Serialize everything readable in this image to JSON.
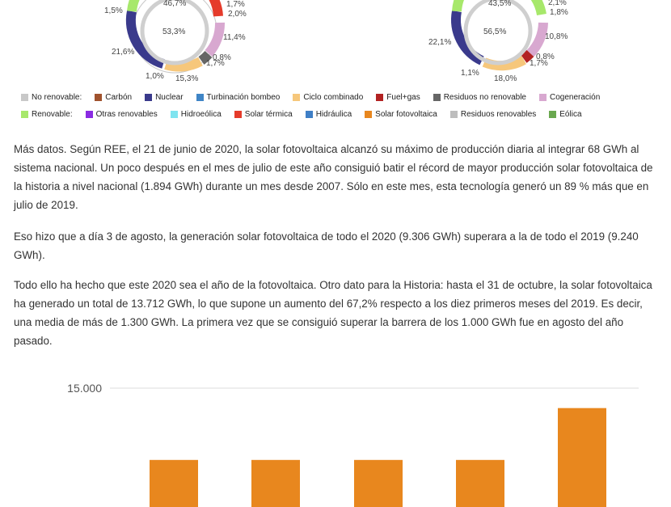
{
  "donut_left": {
    "inner_top": "46,7%",
    "inner_bottom": "53,3%",
    "labels": [
      "1,5%",
      "1,7%",
      "2,0%",
      "11,4%",
      "0,8%",
      "1,7%",
      "15,3%",
      "1,0%",
      "21,6%"
    ]
  },
  "donut_right": {
    "inner_top": "43,5%",
    "inner_bottom": "56,5%",
    "labels": [
      "2,1%",
      "1,8%",
      "10,8%",
      "0,8%",
      "1,7%",
      "18,0%",
      "1,1%",
      "22,1%"
    ]
  },
  "legend": {
    "row1": [
      {
        "label": "No renovable:",
        "color": "#c8c8c8"
      },
      {
        "label": "Carbón",
        "color": "#a0522d"
      },
      {
        "label": "Nuclear",
        "color": "#3a3a8c"
      },
      {
        "label": "Turbinación bombeo",
        "color": "#3f85c6"
      },
      {
        "label": "Ciclo combinado",
        "color": "#f6c77b"
      },
      {
        "label": "Fuel+gas",
        "color": "#b22222"
      },
      {
        "label": "Residuos no renovable",
        "color": "#666666"
      },
      {
        "label": "Cogeneración",
        "color": "#d8a8d0"
      }
    ],
    "row2": [
      {
        "label": "Renovable:",
        "color": "#a7e86b"
      },
      {
        "label": "Otras renovables",
        "color": "#8a2be2"
      },
      {
        "label": "Hidroeólica",
        "color": "#7fe4f0"
      },
      {
        "label": "Solar térmica",
        "color": "#e53b2b"
      },
      {
        "label": "Hidráulica",
        "color": "#3f7fc6"
      },
      {
        "label": "Solar fotovoltaica",
        "color": "#e8871e"
      },
      {
        "label": "Residuos renovables",
        "color": "#bdbdbd"
      },
      {
        "label": "Eólica",
        "color": "#6aa84f"
      }
    ]
  },
  "article": {
    "p1": "Más datos. Según REE,  el 21 de junio de 2020, la solar fotovoltaica alcanzó su máximo de producción diaria al integrar 68 GWh al sistema nacional. Un poco después en el mes de julio de este año consiguió batir el récord de mayor producción solar fotovoltaica de la historia a nivel nacional (1.894 GWh) durante un mes desde 2007. Sólo en este mes, esta tecnología generó un 89 % más que en julio de 2019.",
    "p2": "Eso hizo que a día 3 de agosto, la generación solar fotovoltaica de todo el 2020 (9.306 GWh) superara a la de todo el 2019 (9.240 GWh).",
    "p3": "Todo ello ha hecho que este 2020 sea el año de la fotovoltaica. Otro dato para la Historia: hasta el 31 de octubre, la solar fotovoltaica ha generado un total de 13.712 GWh, lo que supone un aumento del 67,2% respecto a los diez primeros meses del 2019. Es decir, una media de más de 1.300 GWh. La primera vez que se consiguió superar la barrera de los 1.000 GWh fue en agosto del año pasado."
  },
  "chart_data": {
    "type": "bar",
    "ytick_labels": [
      "15.000"
    ],
    "ylim": [
      0,
      15000
    ],
    "values": [
      7800,
      7800,
      7800,
      7800,
      13000
    ],
    "color": "#e8871e",
    "grid": true
  }
}
